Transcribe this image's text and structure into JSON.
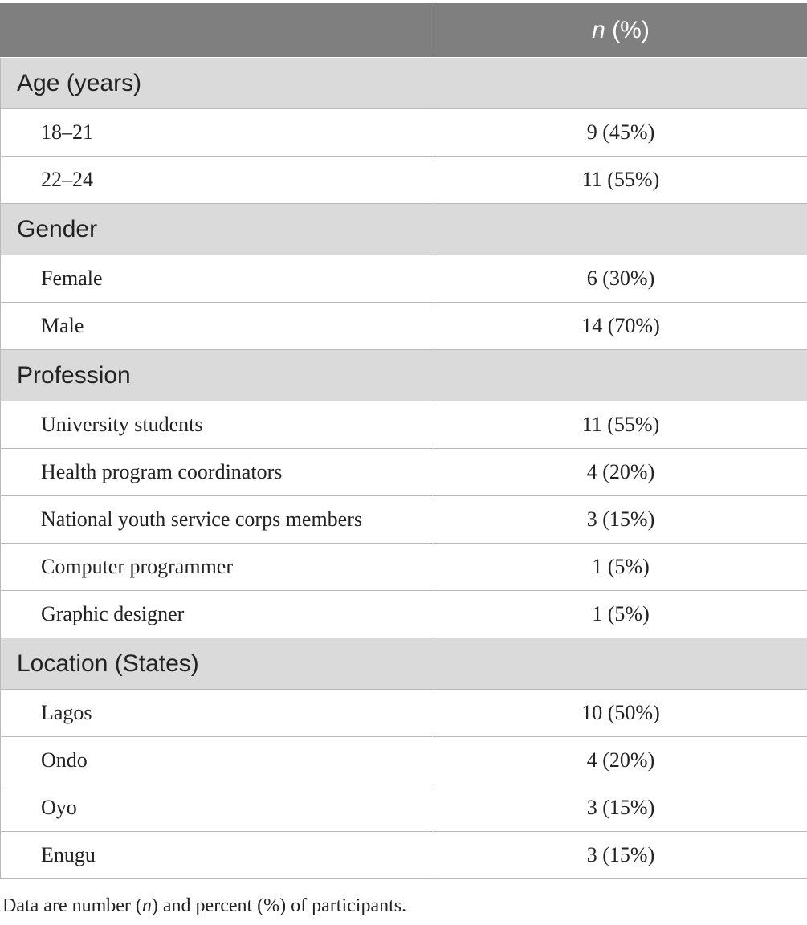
{
  "header": {
    "col1": "",
    "col2_n": "n",
    "col2_rest": " (%)"
  },
  "sections": [
    {
      "title": "Age (years)",
      "rows": [
        {
          "label": "18–21",
          "value": "9 (45%)"
        },
        {
          "label": "22–24",
          "value": "11 (55%)"
        }
      ]
    },
    {
      "title": "Gender",
      "rows": [
        {
          "label": "Female",
          "value": "6 (30%)"
        },
        {
          "label": "Male",
          "value": "14 (70%)"
        }
      ]
    },
    {
      "title": "Profession",
      "rows": [
        {
          "label": "University students",
          "value": "11 (55%)"
        },
        {
          "label": "Health program coordinators",
          "value": "4 (20%)"
        },
        {
          "label": "National youth service corps members",
          "value": "3 (15%)"
        },
        {
          "label": "Computer programmer",
          "value": "1 (5%)"
        },
        {
          "label": "Graphic designer",
          "value": "1 (5%)"
        }
      ]
    },
    {
      "title": "Location (States)",
      "rows": [
        {
          "label": "Lagos",
          "value": "10 (50%)"
        },
        {
          "label": "Ondo",
          "value": "4 (20%)"
        },
        {
          "label": "Oyo",
          "value": "3 (15%)"
        },
        {
          "label": "Enugu",
          "value": "3 (15%)"
        }
      ]
    }
  ],
  "footnote": {
    "part1": "Data are number (",
    "n": "n",
    "part2": ") and percent (%) of participants."
  }
}
